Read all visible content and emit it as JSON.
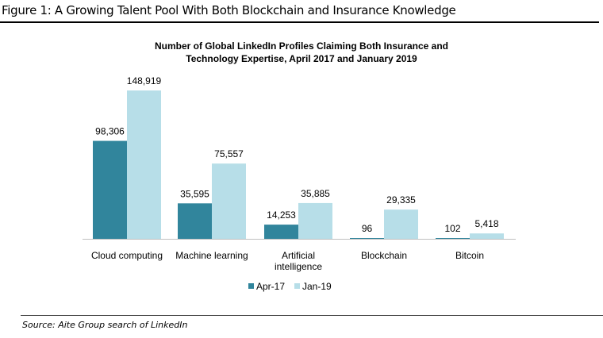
{
  "figure_title": "Figure 1: A Growing Talent Pool With Both Blockchain and Insurance Knowledge",
  "source": "Source: Aite Group search of LinkedIn",
  "colors": {
    "Apr-17": "#31859c",
    "Jan-19": "#b7dee8",
    "axis": "#bfbfbf"
  },
  "chart_data": {
    "type": "bar",
    "title": [
      "Number of Global LinkedIn Profiles Claiming Both Insurance and",
      "Technology Expertise, April 2017 and January 2019"
    ],
    "categories": [
      [
        "Cloud computing"
      ],
      [
        "Machine learning"
      ],
      [
        "Artificial",
        "intelligence"
      ],
      [
        "Blockchain"
      ],
      [
        "Bitcoin"
      ]
    ],
    "series": [
      {
        "name": "Apr-17",
        "values": [
          98306,
          35595,
          14253,
          96,
          102
        ],
        "labels": [
          "98,306",
          "35,595",
          "14,253",
          "96",
          "102"
        ]
      },
      {
        "name": "Jan-19",
        "values": [
          148919,
          75557,
          35885,
          29335,
          5418
        ],
        "labels": [
          "148,919",
          "75,557",
          "35,885",
          "29,335",
          "5,418"
        ]
      }
    ],
    "xlabel": "",
    "ylabel": "",
    "ylim": [
      0,
      148919
    ],
    "grid": false,
    "legend": "bottom"
  }
}
